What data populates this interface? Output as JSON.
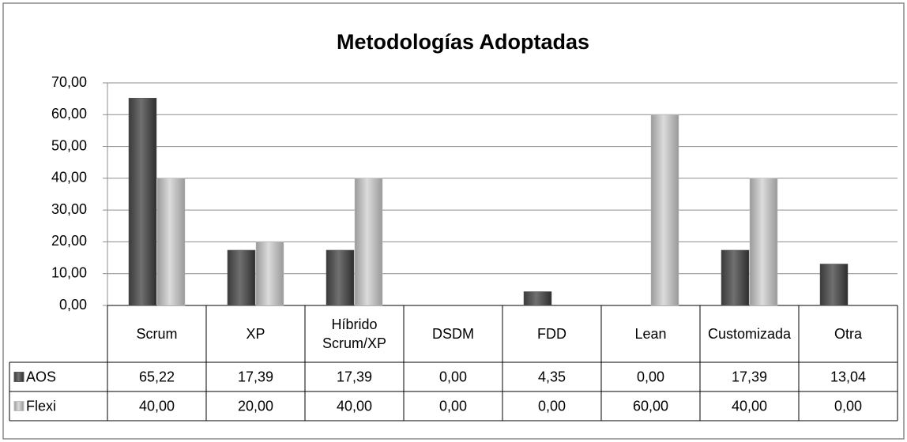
{
  "chart_data": {
    "type": "bar",
    "title": "Metodologías Adoptadas",
    "categories": [
      "Scrum",
      "XP",
      "Híbrido Scrum/XP",
      "DSDM",
      "FDD",
      "Lean",
      "Customizada",
      "Otra"
    ],
    "series": [
      {
        "name": "AOS",
        "color": "#595959",
        "values": [
          65.22,
          17.39,
          17.39,
          0,
          4.35,
          0,
          17.39,
          13.04
        ],
        "value_labels": [
          "65,22",
          "17,39",
          "17,39",
          "0,00",
          "4,35",
          "0,00",
          "17,39",
          "13,04"
        ]
      },
      {
        "name": "Flexi",
        "color": "#bfbfbf",
        "values": [
          40,
          20,
          40,
          0,
          0,
          60,
          40,
          0
        ],
        "value_labels": [
          "40,00",
          "20,00",
          "40,00",
          "0,00",
          "0,00",
          "60,00",
          "40,00",
          "0,00"
        ]
      }
    ],
    "ylim": [
      0,
      70
    ],
    "yticks": [
      {
        "value": 0,
        "label": "0,00"
      },
      {
        "value": 10,
        "label": "10,00"
      },
      {
        "value": 20,
        "label": "20,00"
      },
      {
        "value": 30,
        "label": "30,00"
      },
      {
        "value": 40,
        "label": "40,00"
      },
      {
        "value": 50,
        "label": "50,00"
      },
      {
        "value": 60,
        "label": "60,00"
      },
      {
        "value": 70,
        "label": "70,00"
      }
    ],
    "grid": true
  }
}
